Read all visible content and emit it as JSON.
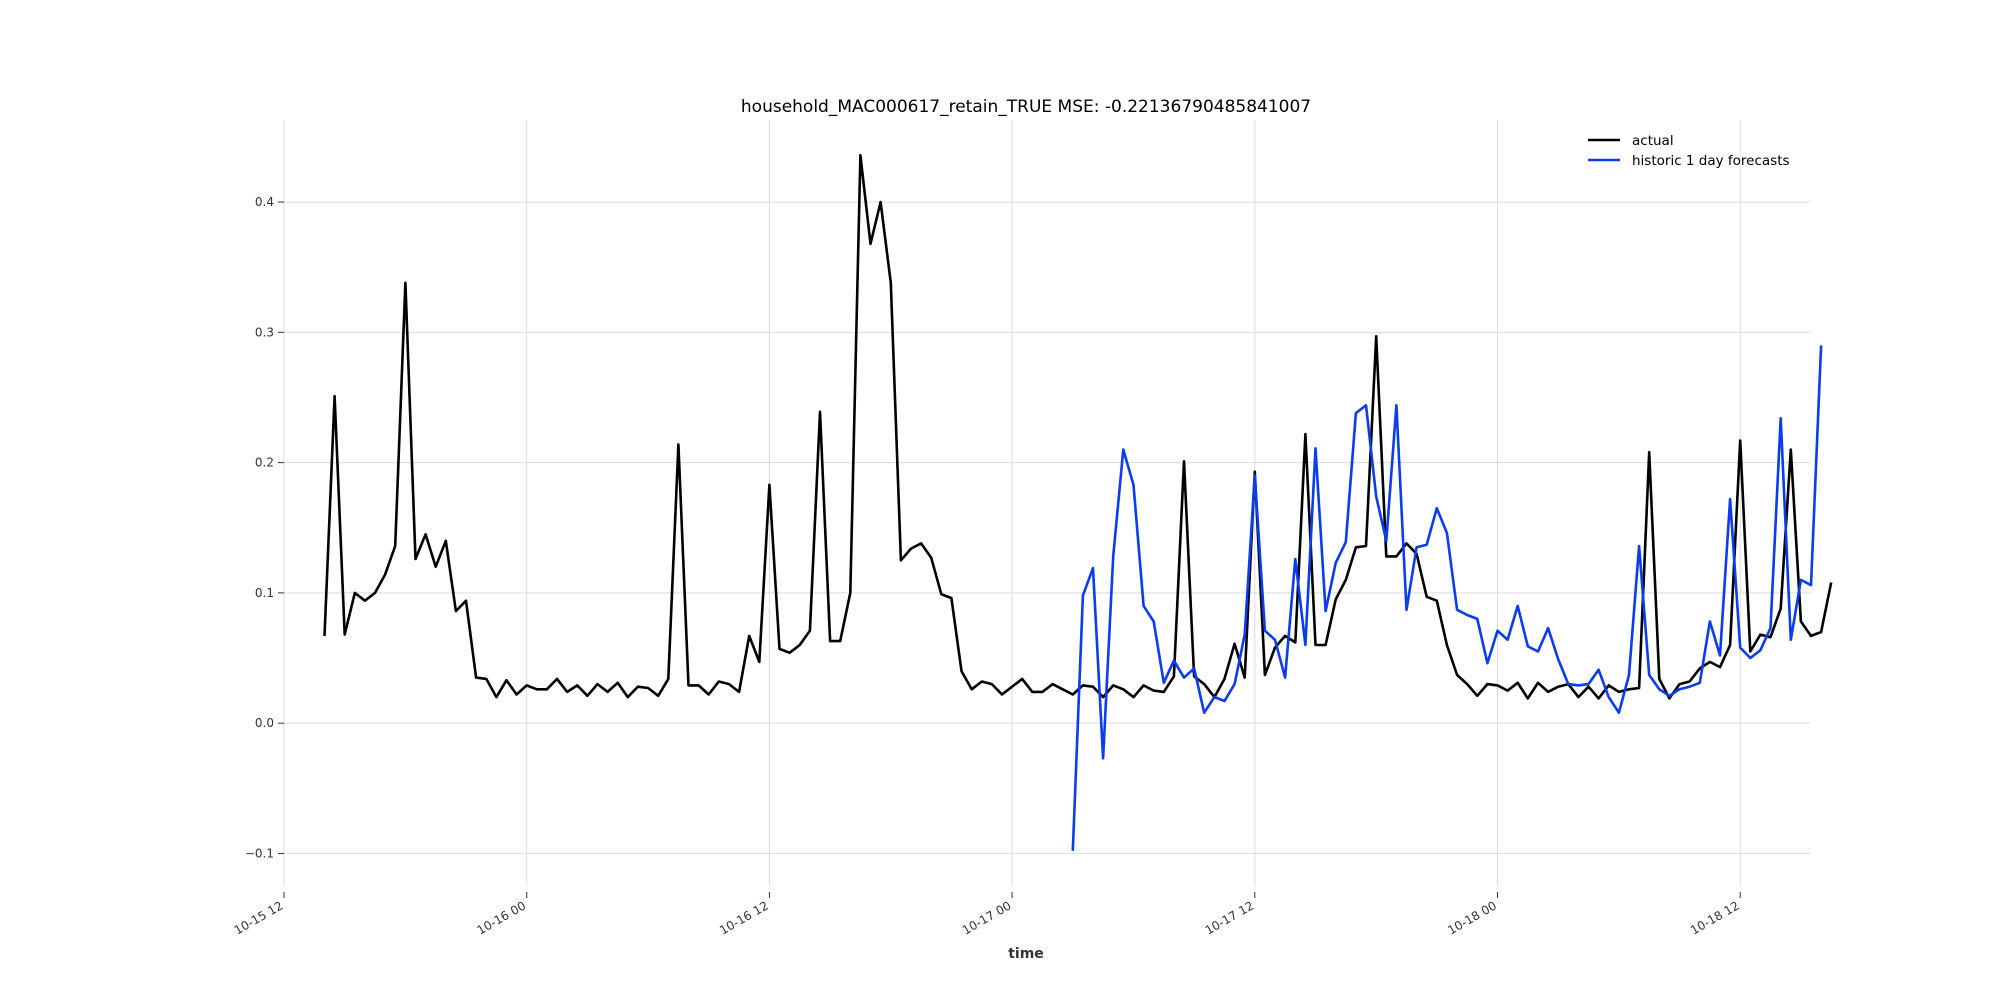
{
  "chart_data": {
    "type": "line",
    "title": "household_MAC000617_retain_TRUE MSE: -0.22136790485841007",
    "xlabel": "time",
    "ylabel": "",
    "x_start": "2013-10-15 16:00",
    "x_step_minutes": 60,
    "xlim": [
      "2013-10-15 12:00",
      "2013-10-18 15:30"
    ],
    "ylim": [
      -0.125,
      0.463
    ],
    "x_ticks": [
      {
        "at": "2013-10-15 12:00",
        "label": "10-15 12"
      },
      {
        "at": "2013-10-16 00:00",
        "label": "10-16 00"
      },
      {
        "at": "2013-10-16 12:00",
        "label": "10-16 12"
      },
      {
        "at": "2013-10-17 00:00",
        "label": "10-17 00"
      },
      {
        "at": "2013-10-17 12:00",
        "label": "10-17 12"
      },
      {
        "at": "2013-10-18 00:00",
        "label": "10-18 00"
      },
      {
        "at": "2013-10-18 12:00",
        "label": "10-18 12"
      }
    ],
    "y_ticks": [
      {
        "value": -0.1,
        "label": "−0.1"
      },
      {
        "value": 0.0,
        "label": "0.0"
      },
      {
        "value": 0.1,
        "label": "0.1"
      },
      {
        "value": 0.2,
        "label": "0.2"
      },
      {
        "value": 0.3,
        "label": "0.3"
      },
      {
        "value": 0.4,
        "label": "0.4"
      }
    ],
    "grid": true,
    "legend_position": "top-right",
    "series": [
      {
        "name": "actual",
        "color": "#000000",
        "start": "2013-10-15 14:00",
        "step_minutes": 30,
        "values": [
          0.067,
          0.251,
          0.068,
          0.1,
          0.094,
          0.1,
          0.114,
          0.136,
          0.338,
          0.126,
          0.145,
          0.12,
          0.14,
          0.086,
          0.094,
          0.035,
          0.034,
          0.02,
          0.033,
          0.022,
          0.029,
          0.026,
          0.026,
          0.034,
          0.024,
          0.029,
          0.021,
          0.03,
          0.024,
          0.031,
          0.02,
          0.028,
          0.027,
          0.021,
          0.034,
          0.214,
          0.029,
          0.029,
          0.022,
          0.032,
          0.03,
          0.024,
          0.067,
          0.047,
          0.183,
          0.057,
          0.054,
          0.06,
          0.071,
          0.239,
          0.063,
          0.063,
          0.1,
          0.436,
          0.368,
          0.4,
          0.338,
          0.125,
          0.134,
          0.138,
          0.127,
          0.099,
          0.096,
          0.04,
          0.026,
          0.032,
          0.03,
          0.022,
          0.028,
          0.034,
          0.024,
          0.024,
          0.03,
          0.026,
          0.022,
          0.029,
          0.028,
          0.02,
          0.029,
          0.026,
          0.02,
          0.029,
          0.025,
          0.024,
          0.036,
          0.201,
          0.036,
          0.03,
          0.02,
          0.034,
          0.061,
          0.035,
          0.193,
          0.037,
          0.058,
          0.067,
          0.062,
          0.222,
          0.06,
          0.06,
          0.095,
          0.11,
          0.135,
          0.136,
          0.297,
          0.128,
          0.128,
          0.138,
          0.13,
          0.097,
          0.094,
          0.06,
          0.037,
          0.03,
          0.021,
          0.03,
          0.029,
          0.025,
          0.031,
          0.019,
          0.031,
          0.024,
          0.028,
          0.03,
          0.02,
          0.028,
          0.019,
          0.029,
          0.024,
          0.026,
          0.027,
          0.208,
          0.034,
          0.019,
          0.03,
          0.032,
          0.042,
          0.047,
          0.043,
          0.06,
          0.217,
          0.055,
          0.068,
          0.066,
          0.088,
          0.21,
          0.078,
          0.067,
          0.07,
          0.108
        ]
      },
      {
        "name": "historic 1 day forecasts",
        "color": "#0a3cf0",
        "start": "2013-10-17 03:00",
        "step_minutes": 30,
        "values": [
          -0.098,
          0.098,
          0.119,
          -0.027,
          0.128,
          0.21,
          0.183,
          0.09,
          0.078,
          0.031,
          0.048,
          0.035,
          0.042,
          0.008,
          0.02,
          0.017,
          0.03,
          0.068,
          0.19,
          0.071,
          0.064,
          0.035,
          0.126,
          0.06,
          0.211,
          0.086,
          0.123,
          0.139,
          0.238,
          0.244,
          0.174,
          0.14,
          0.244,
          0.087,
          0.135,
          0.137,
          0.165,
          0.146,
          0.087,
          0.083,
          0.08,
          0.046,
          0.071,
          0.064,
          0.09,
          0.059,
          0.055,
          0.073,
          0.049,
          0.03,
          0.029,
          0.03,
          0.041,
          0.02,
          0.008,
          0.037,
          0.136,
          0.037,
          0.026,
          0.021,
          0.026,
          0.028,
          0.031,
          0.078,
          0.052,
          0.172,
          0.058,
          0.05,
          0.056,
          0.073,
          0.234,
          0.064,
          0.11,
          0.106,
          0.29
        ]
      }
    ]
  }
}
